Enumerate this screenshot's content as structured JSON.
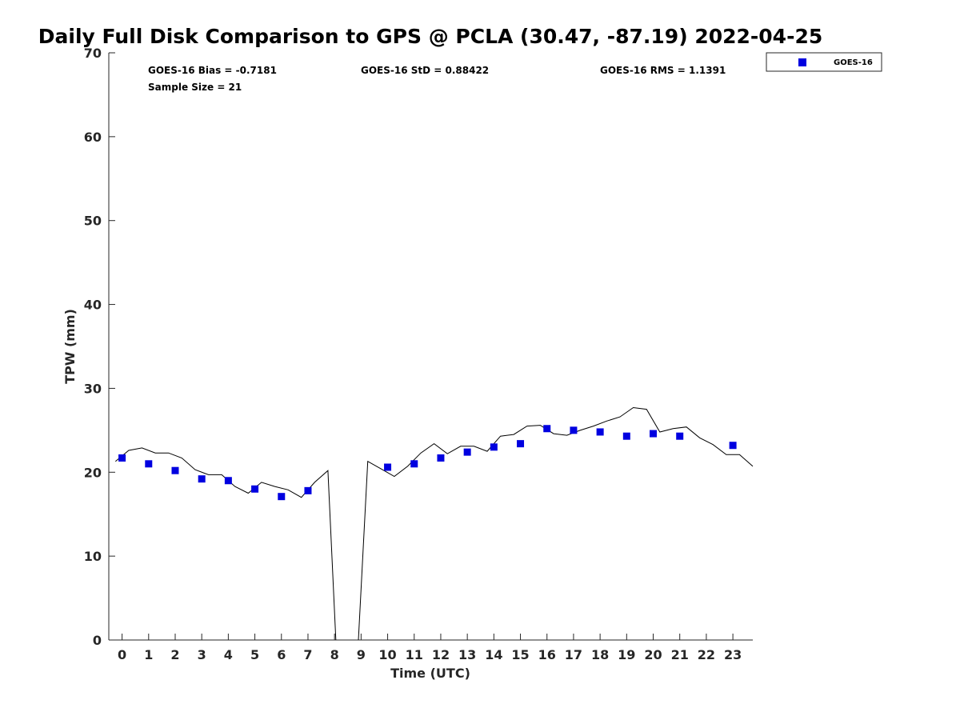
{
  "chart_data": {
    "type": "scatter",
    "title": "Daily Full Disk Comparison to GPS @ PCLA (30.47, -87.19) 2022-04-25",
    "xlabel": "Time (UTC)",
    "ylabel": "TPW (mm)",
    "xlim": [
      -0.5,
      23.75
    ],
    "ylim": [
      0,
      70
    ],
    "x_ticks": [
      0,
      1,
      2,
      3,
      4,
      5,
      6,
      7,
      8,
      9,
      10,
      11,
      12,
      13,
      14,
      15,
      16,
      17,
      18,
      19,
      20,
      21,
      22,
      23
    ],
    "x_tick_labels": [
      "0",
      "1",
      "2",
      "3",
      "4",
      "5",
      "6",
      "7",
      "8",
      "9",
      "10",
      "11",
      "12",
      "13",
      "14",
      "15",
      "16",
      "17",
      "18",
      "19",
      "20",
      "21",
      "22",
      "23"
    ],
    "y_ticks": [
      0,
      10,
      20,
      30,
      40,
      50,
      60,
      70
    ],
    "y_tick_labels": [
      "0",
      "10",
      "20",
      "30",
      "40",
      "50",
      "60",
      "70"
    ],
    "grid": false,
    "legend_position": "top-right",
    "stats": {
      "bias": "GOES-16 Bias = -0.7181",
      "std": "GOES-16 StD = 0.88422",
      "rms": "GOES-16 RMS = 1.1391",
      "sample_size": "Sample Size = 21"
    },
    "series": [
      {
        "name": "GOES-16",
        "kind": "scatter",
        "marker": "square",
        "color": "#0000e0",
        "x": [
          0,
          1,
          2,
          3,
          4,
          5,
          6,
          7,
          10,
          11,
          12,
          13,
          14,
          15,
          16,
          17,
          18,
          19,
          20,
          21,
          23
        ],
        "y": [
          21.7,
          21.0,
          20.2,
          19.2,
          19.0,
          18.0,
          17.1,
          17.8,
          20.6,
          21.0,
          21.7,
          22.4,
          23.0,
          23.4,
          25.2,
          25.0,
          24.8,
          24.3,
          24.6,
          24.3,
          23.2
        ]
      },
      {
        "kind": "line",
        "color": "#000000",
        "segments": [
          {
            "x": [
              -0.25,
              0.25,
              0.75,
              1.25,
              1.75,
              2.25,
              2.75,
              3.25,
              3.75,
              4.25,
              4.75,
              5.25,
              5.75,
              6.25,
              6.75,
              7.25,
              7.75,
              8.05
            ],
            "y": [
              21.3,
              22.6,
              22.9,
              22.3,
              22.3,
              21.7,
              20.3,
              19.7,
              19.7,
              18.3,
              17.5,
              18.8,
              18.3,
              17.9,
              17.0,
              18.8,
              20.2,
              0
            ]
          },
          {
            "x": [
              8.9,
              9.25,
              9.75,
              10.25,
              10.75,
              11.25,
              11.75,
              12.25,
              12.75,
              13.25,
              13.75,
              14.25,
              14.75,
              15.25,
              15.75,
              16.25,
              16.75,
              17.25,
              17.75,
              18.25,
              18.75,
              19.25,
              19.75,
              20.25,
              20.75,
              21.25,
              21.75,
              22.25,
              22.75,
              23.25,
              23.75
            ],
            "y": [
              0,
              21.3,
              20.4,
              19.5,
              20.7,
              22.3,
              23.4,
              22.2,
              23.1,
              23.1,
              22.5,
              24.3,
              24.5,
              25.5,
              25.6,
              24.6,
              24.4,
              25.0,
              25.5,
              26.1,
              26.6,
              27.7,
              27.5,
              24.8,
              25.2,
              25.4,
              24.1,
              23.3,
              22.1,
              22.1,
              20.7
            ]
          }
        ]
      }
    ]
  }
}
